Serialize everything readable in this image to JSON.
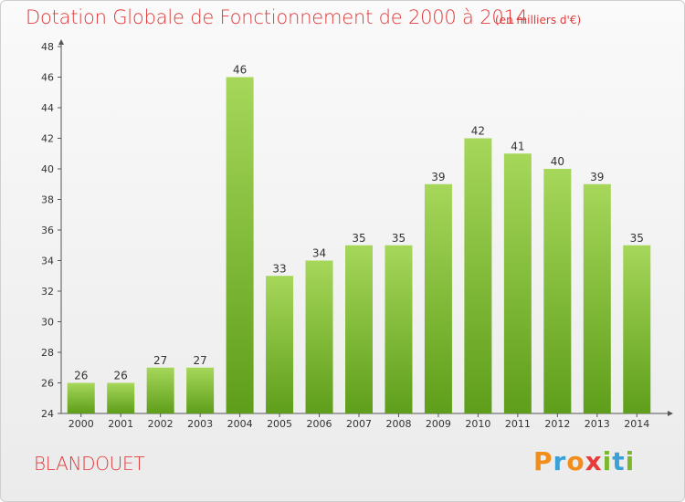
{
  "title": "Dotation Globale de Fonctionnement de 2000 à 2014",
  "subtitle": "(en milliers d'€)",
  "commune": "BLANDOUET",
  "logo": {
    "letters": [
      "P",
      "r",
      "o",
      "x",
      "i",
      "t",
      "i"
    ],
    "colors": [
      "#f28c1a",
      "#3aa0d8",
      "#f28c1a",
      "#e53b3b",
      "#7cb82f",
      "#3aa0d8",
      "#7cb82f"
    ]
  },
  "colors": {
    "bar_light": "#a6d75a",
    "bar_dark": "#5e9e1a",
    "axis": "#555555",
    "text": "#333333"
  },
  "chart_data": {
    "type": "bar",
    "categories": [
      "2000",
      "2001",
      "2002",
      "2003",
      "2004",
      "2005",
      "2006",
      "2007",
      "2008",
      "2009",
      "2010",
      "2011",
      "2012",
      "2013",
      "2014"
    ],
    "values": [
      26,
      26,
      27,
      27,
      46,
      33,
      34,
      35,
      35,
      39,
      42,
      41,
      40,
      39,
      35
    ],
    "ylim": [
      24,
      48
    ],
    "yticks": [
      24,
      26,
      28,
      30,
      32,
      34,
      36,
      38,
      40,
      42,
      44,
      46,
      48
    ],
    "grid": false
  }
}
